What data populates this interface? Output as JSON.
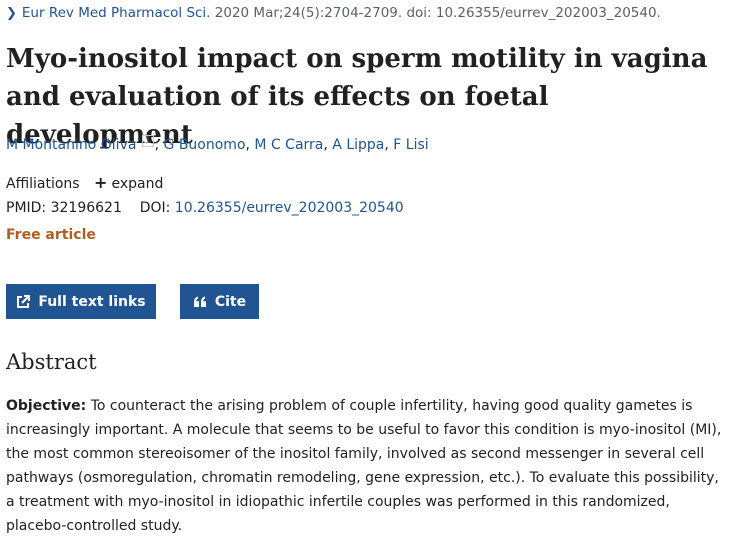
{
  "citation": {
    "journal": "Eur Rev Med Pharmacol Sci.",
    "details": "2020 Mar;24(5):2704-2709. doi: 10.26355/eurrev_202003_20540."
  },
  "article": {
    "title": "Myo-inositol impact on sperm motility in vagina and evaluation of its effects on foetal development",
    "authors": [
      {
        "name": "M Montanino Oliva",
        "affil": "1"
      },
      {
        "name": "G Buonomo"
      },
      {
        "name": "M C Carra"
      },
      {
        "name": "A Lippa"
      },
      {
        "name": "F Lisi"
      }
    ],
    "affiliations_label": "Affiliations",
    "expand_label": "expand",
    "pmid_label": "PMID:",
    "pmid": "32196621",
    "doi_label": "DOI:",
    "doi": "10.26355/eurrev_202003_20540",
    "free_label": "Free article"
  },
  "actions": {
    "full_text_label": "Full text links",
    "cite_label": "Cite"
  },
  "abstract": {
    "heading": "Abstract",
    "objective_label": "Objective:",
    "objective_text": "To counteract the arising problem of couple infertility, having good quality gametes is increasingly important. A molecule that seems to be useful to favor this condition is myo-inositol (MI), the most common stereoisomer of the inositol family, involved as second messenger in several cell pathways (osmoregulation, chromatin remodeling, gene expression, etc.). To evaluate this possibility, a treatment with myo-inositol in idiopathic infertile couples was performed in this randomized, placebo-controlled study."
  },
  "colors": {
    "link": "#205493",
    "button_bg": "#205493",
    "free_article": "#b05e20"
  },
  "icons": {
    "breadcrumb": "chevron-right-icon",
    "expand": "plus-icon",
    "full_text": "external-link-icon",
    "cite": "quote-icon"
  }
}
